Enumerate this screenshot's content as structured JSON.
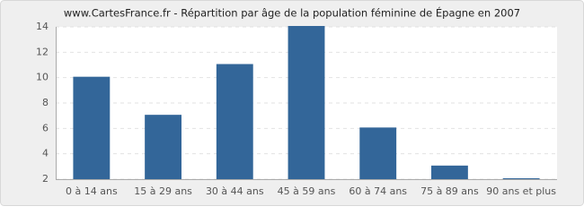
{
  "chart_data": {
    "type": "bar",
    "title": "www.CartesFrance.fr - Répartition par âge de la population féminine de Épagne en 2007",
    "categories": [
      "0 à 14 ans",
      "15 à 29 ans",
      "30 à 44 ans",
      "45 à 59 ans",
      "60 à 74 ans",
      "75 à 89 ans",
      "90 ans et plus"
    ],
    "values": [
      10,
      7,
      11,
      14,
      6,
      3,
      2
    ],
    "color": "#336699",
    "ylim": [
      2,
      14
    ],
    "yticks": [
      2,
      4,
      6,
      8,
      10,
      12,
      14
    ],
    "grid": true
  }
}
